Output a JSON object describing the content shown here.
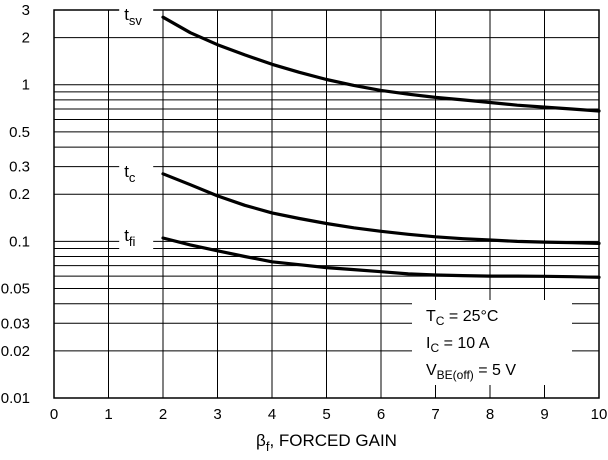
{
  "chart_data": {
    "type": "line",
    "xlabel": {
      "main": "β",
      "sub": "f",
      "rest": ", FORCED GAIN"
    },
    "x_ticks": [
      "0",
      "1",
      "2",
      "3",
      "4",
      "5",
      "6",
      "7",
      "8",
      "9",
      "10"
    ],
    "xlim": [
      0,
      10
    ],
    "ylim": [
      0.01,
      3
    ],
    "y_scale": "log",
    "y_ticks": [
      {
        "value": 0.01,
        "label": "0.01"
      },
      {
        "value": 0.02,
        "label": "0.02"
      },
      {
        "value": 0.03,
        "label": "0.03"
      },
      {
        "value": 0.05,
        "label": "0.05"
      },
      {
        "value": 0.1,
        "label": "0.1"
      },
      {
        "value": 0.2,
        "label": "0.2"
      },
      {
        "value": 0.3,
        "label": "0.3"
      },
      {
        "value": 0.5,
        "label": "0.5"
      },
      {
        "value": 1,
        "label": "1"
      },
      {
        "value": 2,
        "label": "2"
      },
      {
        "value": 3,
        "label": "3"
      }
    ],
    "grid": true,
    "series": [
      {
        "name": "tsv",
        "label_main": "t",
        "label_sub": "sv",
        "label_at": 1.6,
        "x": [
          2,
          2.5,
          3,
          3.5,
          4,
          4.5,
          5,
          5.5,
          6,
          6.5,
          7,
          7.5,
          8,
          8.5,
          9,
          9.5,
          10
        ],
        "y": [
          2.7,
          2.15,
          1.8,
          1.55,
          1.35,
          1.2,
          1.08,
          0.99,
          0.92,
          0.87,
          0.83,
          0.8,
          0.77,
          0.74,
          0.72,
          0.7,
          0.68
        ]
      },
      {
        "name": "tc",
        "label_main": "t",
        "label_sub": "c",
        "label_at": 1.6,
        "x": [
          2,
          2.5,
          3,
          3.5,
          4,
          4.5,
          5,
          5.5,
          6,
          6.5,
          7,
          7.5,
          8,
          8.5,
          9,
          9.5,
          10
        ],
        "y": [
          0.27,
          0.23,
          0.195,
          0.17,
          0.152,
          0.14,
          0.13,
          0.122,
          0.116,
          0.111,
          0.107,
          0.104,
          0.102,
          0.1,
          0.099,
          0.098,
          0.097
        ]
      },
      {
        "name": "tfi",
        "label_main": "t",
        "label_sub": "fi",
        "label_at": 1.6,
        "x": [
          2,
          2.5,
          3,
          3.5,
          4,
          4.5,
          5,
          5.5,
          6,
          6.5,
          7,
          7.5,
          8,
          8.5,
          9,
          9.5,
          10
        ],
        "y": [
          0.105,
          0.095,
          0.087,
          0.08,
          0.074,
          0.071,
          0.068,
          0.066,
          0.064,
          0.062,
          0.061,
          0.0605,
          0.06,
          0.06,
          0.0598,
          0.0595,
          0.059
        ]
      }
    ],
    "conditions": [
      {
        "main": "T",
        "sub": "C",
        "rest": " = 25°C"
      },
      {
        "main": "I",
        "sub": "C",
        "rest": " = 10 A"
      },
      {
        "main": "V",
        "sub": "BE(off)",
        "rest": " = 5 V"
      }
    ]
  }
}
